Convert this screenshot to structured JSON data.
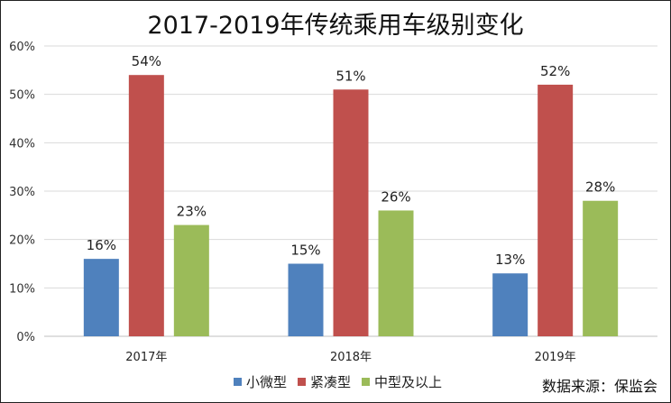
{
  "chart_data": {
    "type": "bar",
    "title": "2017-2019年传统乘用车级别变化",
    "categories": [
      "2017年",
      "2018年",
      "2019年"
    ],
    "series": [
      {
        "name": "小微型",
        "values": [
          16,
          15,
          13
        ],
        "labels": [
          "16%",
          "15%",
          "13%"
        ],
        "color": "#4f81bd"
      },
      {
        "name": "紧凑型",
        "values": [
          54,
          51,
          52
        ],
        "labels": [
          "54%",
          "51%",
          "52%"
        ],
        "color": "#c0504d"
      },
      {
        "name": "中型及以上",
        "values": [
          23,
          26,
          28
        ],
        "labels": [
          "23%",
          "26%",
          "28%"
        ],
        "color": "#9bbb59"
      }
    ],
    "ylim": [
      0,
      60
    ],
    "yticks": [
      0,
      10,
      20,
      30,
      40,
      50,
      60
    ],
    "ytick_labels": [
      "0%",
      "10%",
      "20%",
      "30%",
      "40%",
      "50%",
      "60%"
    ],
    "grid": true,
    "legend_position": "bottom"
  },
  "source_note": "数据来源：保监会"
}
